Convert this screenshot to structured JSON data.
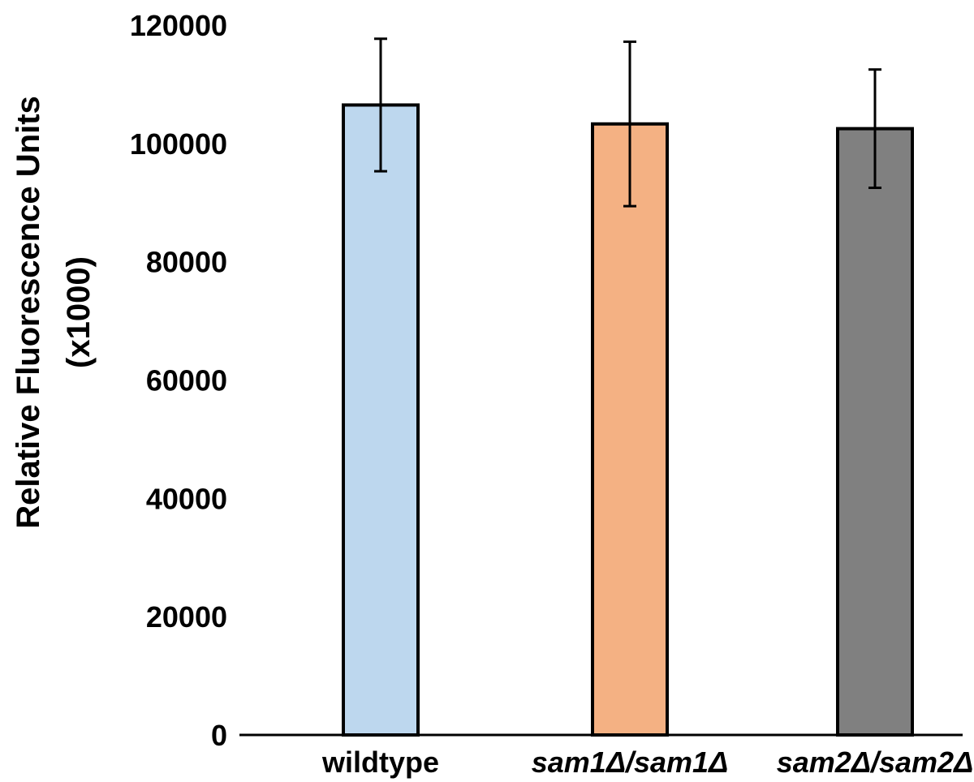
{
  "chart_data": {
    "type": "bar",
    "categories": [
      "wildtype",
      "sam1Δ/sam1Δ",
      "sam2Δ/sam2Δ"
    ],
    "category_italic": [
      false,
      true,
      true
    ],
    "values": [
      106500,
      103300,
      102500
    ],
    "errors": [
      11200,
      13900,
      10000
    ],
    "colors": [
      "#bdd7ee",
      "#f4b183",
      "#808080"
    ],
    "xlabel": "",
    "ylabel": "Relative Fluorescence Units",
    "ylabel2": "(x1000)",
    "ylim": [
      0,
      120000
    ],
    "yticks": [
      0,
      20000,
      40000,
      60000,
      80000,
      100000,
      120000
    ],
    "grid": false,
    "legend": "none"
  }
}
